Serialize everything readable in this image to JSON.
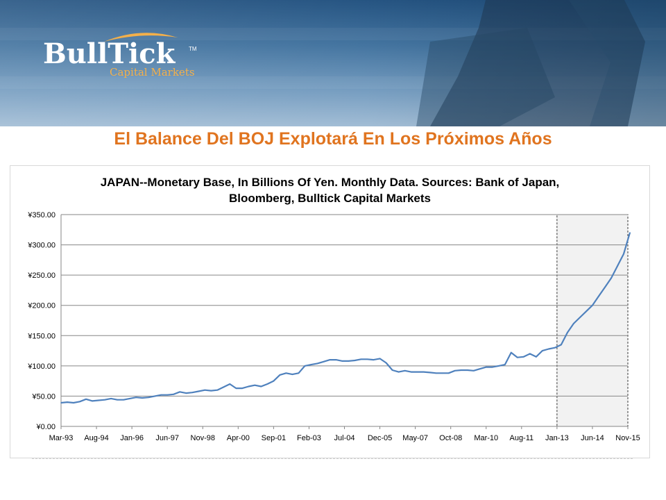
{
  "header": {
    "brand_name": "BullTick",
    "brand_tm": "TM",
    "brand_subtitle": "Capital Markets",
    "slide_title": "El Balance Del BOJ Explotará En Los Próximos Años"
  },
  "colors": {
    "title_orange": "#e0741f",
    "line_blue": "#4f81bd",
    "banner_blue": "#2e5f8e",
    "logo_gold": "#f4b04a"
  },
  "chart_data": {
    "type": "line",
    "title_line1": "JAPAN--Monetary Base, In Billions Of Yen. Monthly Data. Sources: Bank of Japan,",
    "title_line2": "Bloomberg, Bulltick Capital Markets",
    "xlabel": "",
    "ylabel": "",
    "ylim": [
      0,
      350
    ],
    "yticks": [
      "¥0.00",
      "¥50.00",
      "¥100.00",
      "¥150.00",
      "¥200.00",
      "¥250.00",
      "¥300.00",
      "¥350.00"
    ],
    "xticks": [
      "Mar-93",
      "Aug-94",
      "Jan-96",
      "Jun-97",
      "Nov-98",
      "Apr-00",
      "Sep-01",
      "Feb-03",
      "Jul-04",
      "Dec-05",
      "May-07",
      "Oct-08",
      "Mar-10",
      "Aug-11",
      "Jan-13",
      "Jun-14",
      "Nov-15"
    ],
    "grid": true,
    "shaded_region": {
      "from": "Jan-13",
      "to": "Nov-15"
    },
    "series": [
      {
        "x": [
          "Mar-93",
          "Jun-93",
          "Sep-93",
          "Dec-93",
          "Mar-94",
          "Jun-94",
          "Sep-94",
          "Dec-94",
          "Mar-95",
          "Jun-95",
          "Sep-95",
          "Dec-95",
          "Mar-96",
          "Jun-96",
          "Sep-96",
          "Dec-96",
          "Mar-97",
          "Jun-97",
          "Sep-97",
          "Dec-97",
          "Mar-98",
          "Jun-98",
          "Sep-98",
          "Dec-98",
          "Mar-99",
          "Jun-99",
          "Sep-99",
          "Dec-99",
          "Mar-00",
          "Jun-00",
          "Sep-00",
          "Dec-00",
          "Mar-01",
          "Jun-01",
          "Sep-01",
          "Dec-01",
          "Mar-02",
          "Jun-02",
          "Sep-02",
          "Dec-02",
          "Mar-03",
          "Jun-03",
          "Sep-03",
          "Dec-03",
          "Mar-04",
          "Jun-04",
          "Sep-04",
          "Dec-04",
          "Mar-05",
          "Jun-05",
          "Sep-05",
          "Dec-05",
          "Mar-06",
          "Jun-06",
          "Sep-06",
          "Dec-06",
          "Mar-07",
          "Jun-07",
          "Sep-07",
          "Dec-07",
          "Mar-08",
          "Jun-08",
          "Sep-08",
          "Dec-08",
          "Mar-09",
          "Jun-09",
          "Sep-09",
          "Dec-09",
          "Mar-10",
          "Jun-10",
          "Sep-10",
          "Dec-10",
          "Mar-11",
          "Jun-11",
          "Sep-11",
          "Dec-11",
          "Mar-12",
          "Jun-12",
          "Sep-12",
          "Dec-12",
          "Mar-13",
          "Jun-13",
          "Sep-13",
          "Dec-13",
          "Mar-14",
          "Jun-14",
          "Sep-14",
          "Dec-14",
          "Mar-15",
          "Jun-15",
          "Sep-15",
          "Dec-15"
        ],
        "values": [
          39,
          40,
          39,
          41,
          45,
          42,
          43,
          44,
          46,
          44,
          44,
          46,
          48,
          47,
          48,
          50,
          52,
          52,
          53,
          57,
          55,
          56,
          58,
          60,
          59,
          60,
          65,
          70,
          63,
          63,
          66,
          68,
          66,
          70,
          75,
          85,
          88,
          86,
          88,
          100,
          102,
          104,
          107,
          110,
          110,
          108,
          108,
          109,
          111,
          111,
          110,
          112,
          105,
          93,
          90,
          92,
          90,
          90,
          90,
          89,
          88,
          88,
          88,
          92,
          93,
          93,
          92,
          95,
          98,
          98,
          100,
          102,
          122,
          114,
          115,
          120,
          115,
          125,
          128,
          130,
          135,
          155,
          170,
          180,
          190,
          200,
          215,
          230,
          245,
          265,
          285,
          320
        ]
      }
    ]
  }
}
